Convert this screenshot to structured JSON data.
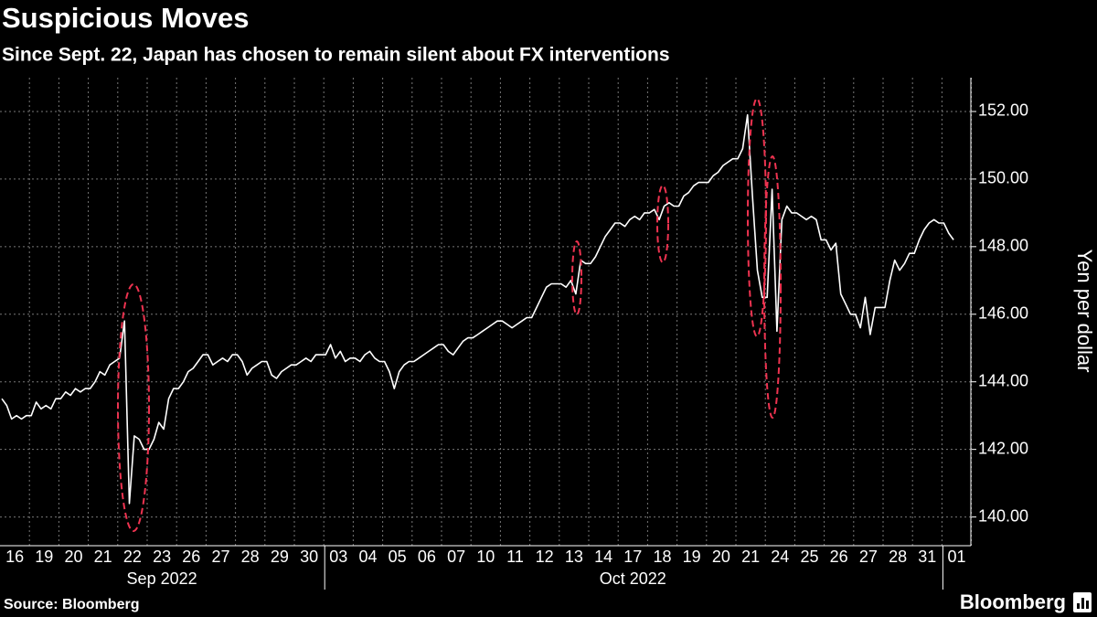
{
  "chart_data": {
    "type": "line",
    "title": "Suspicious Moves",
    "subtitle": "Since Sept. 22, Japan has chosen to remain silent about FX interventions",
    "y_axis_label": "Yen per dollar",
    "source": "Source: Bloomberg",
    "brand": "Bloomberg",
    "color": "#ffffff",
    "grid": true,
    "ylim": [
      139.15,
      153
    ],
    "yticks": [
      {
        "value": 140,
        "label": "140.00"
      },
      {
        "value": 142,
        "label": "142.00"
      },
      {
        "value": 144,
        "label": "144.00"
      },
      {
        "value": 146,
        "label": "146.00"
      },
      {
        "value": 148,
        "label": "148.00"
      },
      {
        "value": 150,
        "label": "150.00"
      },
      {
        "value": 152,
        "label": "152.00"
      }
    ],
    "x_groups": [
      {
        "label": "Sep 2022",
        "categories": [
          "16",
          "19",
          "20",
          "21",
          "22",
          "23",
          "26",
          "27",
          "28",
          "29",
          "30"
        ]
      },
      {
        "label": "Oct 2022",
        "categories": [
          "03",
          "04",
          "05",
          "06",
          "07",
          "10",
          "11",
          "12",
          "13",
          "14",
          "17",
          "18",
          "19",
          "20",
          "21",
          "24",
          "25",
          "26",
          "27",
          "28",
          "31"
        ]
      },
      {
        "label": null,
        "categories": [
          "01"
        ]
      }
    ],
    "values": [
      [
        143.5,
        143.3,
        142.9,
        143.0,
        142.9,
        143.0
      ],
      [
        143.0,
        143.4,
        143.2,
        143.3,
        143.2,
        143.5
      ],
      [
        143.5,
        143.7,
        143.6,
        143.8,
        143.7,
        143.8
      ],
      [
        143.8,
        144.0,
        144.3,
        144.2,
        144.5,
        144.6
      ],
      [
        144.7,
        145.8,
        140.4,
        142.4,
        142.3,
        142.0
      ],
      [
        142.0,
        142.3,
        142.8,
        142.6,
        143.5,
        143.8
      ],
      [
        143.8,
        144.0,
        144.3,
        144.4,
        144.6,
        144.8
      ],
      [
        144.8,
        144.5,
        144.6,
        144.7,
        144.6,
        144.8
      ],
      [
        144.8,
        144.6,
        144.2,
        144.4,
        144.5,
        144.6
      ],
      [
        144.6,
        144.2,
        144.1,
        144.3,
        144.4,
        144.5
      ],
      [
        144.5,
        144.6,
        144.7,
        144.6,
        144.8,
        144.8
      ],
      [
        144.8,
        145.1,
        144.7,
        144.9,
        144.6,
        144.7
      ],
      [
        144.7,
        144.6,
        144.8,
        144.9,
        144.7,
        144.6
      ],
      [
        144.6,
        144.3,
        143.8,
        144.3,
        144.5,
        144.6
      ],
      [
        144.6,
        144.7,
        144.8,
        144.9,
        145.0,
        145.1
      ],
      [
        145.1,
        144.9,
        144.8,
        145.0,
        145.2,
        145.3
      ],
      [
        145.3,
        145.4,
        145.5,
        145.6,
        145.7,
        145.8
      ],
      [
        145.8,
        145.7,
        145.6,
        145.7,
        145.8,
        145.9
      ],
      [
        145.9,
        146.2,
        146.5,
        146.8,
        146.9,
        146.9
      ],
      [
        146.9,
        146.8,
        147.0,
        146.6,
        147.6,
        147.5
      ],
      [
        147.5,
        147.7,
        148.0,
        148.3,
        148.5,
        148.7
      ],
      [
        148.7,
        148.6,
        148.8,
        148.9,
        148.8,
        149.0
      ],
      [
        149.0,
        149.1,
        148.8,
        149.2,
        149.3,
        149.2
      ],
      [
        149.2,
        149.5,
        149.6,
        149.8,
        149.9,
        149.9
      ],
      [
        149.9,
        150.1,
        150.2,
        150.4,
        150.5,
        150.6
      ],
      [
        150.6,
        150.9,
        151.9,
        149.5,
        147.3,
        146.5
      ],
      [
        146.5,
        149.7,
        145.5,
        148.8,
        149.2,
        149.0
      ],
      [
        149.0,
        148.9,
        148.8,
        148.9,
        148.8,
        148.2
      ],
      [
        148.2,
        147.9,
        148.1,
        146.6,
        146.3,
        146.0
      ],
      [
        146.0,
        145.6,
        146.5,
        145.4,
        146.2,
        146.2
      ],
      [
        146.2,
        147.0,
        147.6,
        147.3,
        147.5,
        147.8
      ],
      [
        147.8,
        148.2,
        148.5,
        148.7,
        148.8,
        148.7
      ],
      [
        148.7,
        148.4,
        148.2
      ]
    ]
  }
}
